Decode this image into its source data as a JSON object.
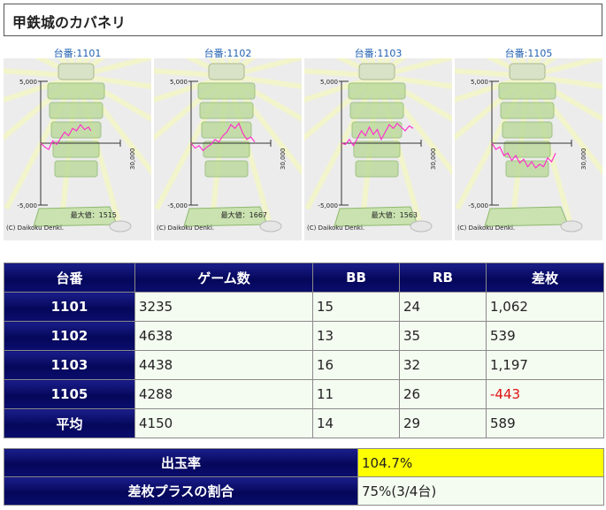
{
  "title": "甲鉄城のカバネリ",
  "graph_label_prefix": "台番:",
  "graph_common": {
    "y_top_label": "5,000",
    "y_bottom_label": "-5,000",
    "x_label": "30,000",
    "max_prefix": "最大値：",
    "copyright": "(C) Daikoku Denki."
  },
  "graphs": [
    {
      "machine": "1101",
      "max": "1515",
      "line_color": "#ff33cc",
      "points": [
        [
          0,
          0
        ],
        [
          0.05,
          -0.3
        ],
        [
          0.1,
          -0.5
        ],
        [
          0.15,
          0.2
        ],
        [
          0.2,
          -0.1
        ],
        [
          0.25,
          0.4
        ],
        [
          0.3,
          0.9
        ],
        [
          0.35,
          0.6
        ],
        [
          0.4,
          1.2
        ],
        [
          0.45,
          1.0
        ],
        [
          0.5,
          1.5
        ],
        [
          0.55,
          1.1
        ],
        [
          0.6,
          1.3
        ],
        [
          0.63,
          1.0
        ]
      ]
    },
    {
      "machine": "1102",
      "max": "1667",
      "line_color": "#ff33cc",
      "points": [
        [
          0,
          0
        ],
        [
          0.05,
          -0.4
        ],
        [
          0.1,
          -0.2
        ],
        [
          0.15,
          -0.6
        ],
        [
          0.2,
          -0.3
        ],
        [
          0.25,
          -0.1
        ],
        [
          0.3,
          0.3
        ],
        [
          0.35,
          0.1
        ],
        [
          0.4,
          0.6
        ],
        [
          0.45,
          0.9
        ],
        [
          0.5,
          1.5
        ],
        [
          0.55,
          1.2
        ],
        [
          0.6,
          1.6
        ],
        [
          0.65,
          0.8
        ],
        [
          0.7,
          0.3
        ],
        [
          0.75,
          0.5
        ],
        [
          0.8,
          0.1
        ]
      ]
    },
    {
      "machine": "1103",
      "max": "1563",
      "line_color": "#ff33cc",
      "points": [
        [
          0,
          0
        ],
        [
          0.05,
          -0.1
        ],
        [
          0.1,
          0.3
        ],
        [
          0.15,
          -0.2
        ],
        [
          0.2,
          0.4
        ],
        [
          0.25,
          1.0
        ],
        [
          0.3,
          0.6
        ],
        [
          0.35,
          1.3
        ],
        [
          0.4,
          0.7
        ],
        [
          0.45,
          1.1
        ],
        [
          0.5,
          0.3
        ],
        [
          0.55,
          0.9
        ],
        [
          0.6,
          1.5
        ],
        [
          0.65,
          1.2
        ],
        [
          0.7,
          1.6
        ],
        [
          0.75,
          1.3
        ],
        [
          0.8,
          1.0
        ],
        [
          0.85,
          1.4
        ],
        [
          0.9,
          1.2
        ]
      ]
    },
    {
      "machine": "1105",
      "max": "",
      "line_color": "#ff33cc",
      "points": [
        [
          0,
          0
        ],
        [
          0.05,
          -0.5
        ],
        [
          0.1,
          -0.3
        ],
        [
          0.15,
          -1.0
        ],
        [
          0.2,
          -0.8
        ],
        [
          0.25,
          -1.4
        ],
        [
          0.3,
          -1.0
        ],
        [
          0.35,
          -1.6
        ],
        [
          0.4,
          -1.3
        ],
        [
          0.45,
          -1.9
        ],
        [
          0.5,
          -1.5
        ],
        [
          0.55,
          -2.0
        ],
        [
          0.6,
          -1.7
        ],
        [
          0.65,
          -1.9
        ],
        [
          0.7,
          -1.2
        ],
        [
          0.75,
          -1.5
        ],
        [
          0.8,
          -0.8
        ]
      ]
    }
  ],
  "table": {
    "headers": [
      "台番",
      "ゲーム数",
      "BB",
      "RB",
      "差枚"
    ],
    "rows": [
      [
        "1101",
        "3235",
        "15",
        "24",
        "1,062"
      ],
      [
        "1102",
        "4638",
        "13",
        "35",
        "539"
      ],
      [
        "1103",
        "4438",
        "16",
        "32",
        "1,197"
      ],
      [
        "1105",
        "4288",
        "11",
        "26",
        "-443"
      ],
      [
        "平均",
        "4150",
        "14",
        "29",
        "589"
      ]
    ]
  },
  "summary": {
    "payout_label": "出玉率",
    "payout_value": "104.7%",
    "plus_label": "差枚プラスの割合",
    "plus_value": "75%(3/4台)"
  },
  "colors": {
    "header_navy": "#05075a",
    "negative": "#e01010",
    "highlight": "#ffff00",
    "cell_bg": "#f4fbf1"
  }
}
